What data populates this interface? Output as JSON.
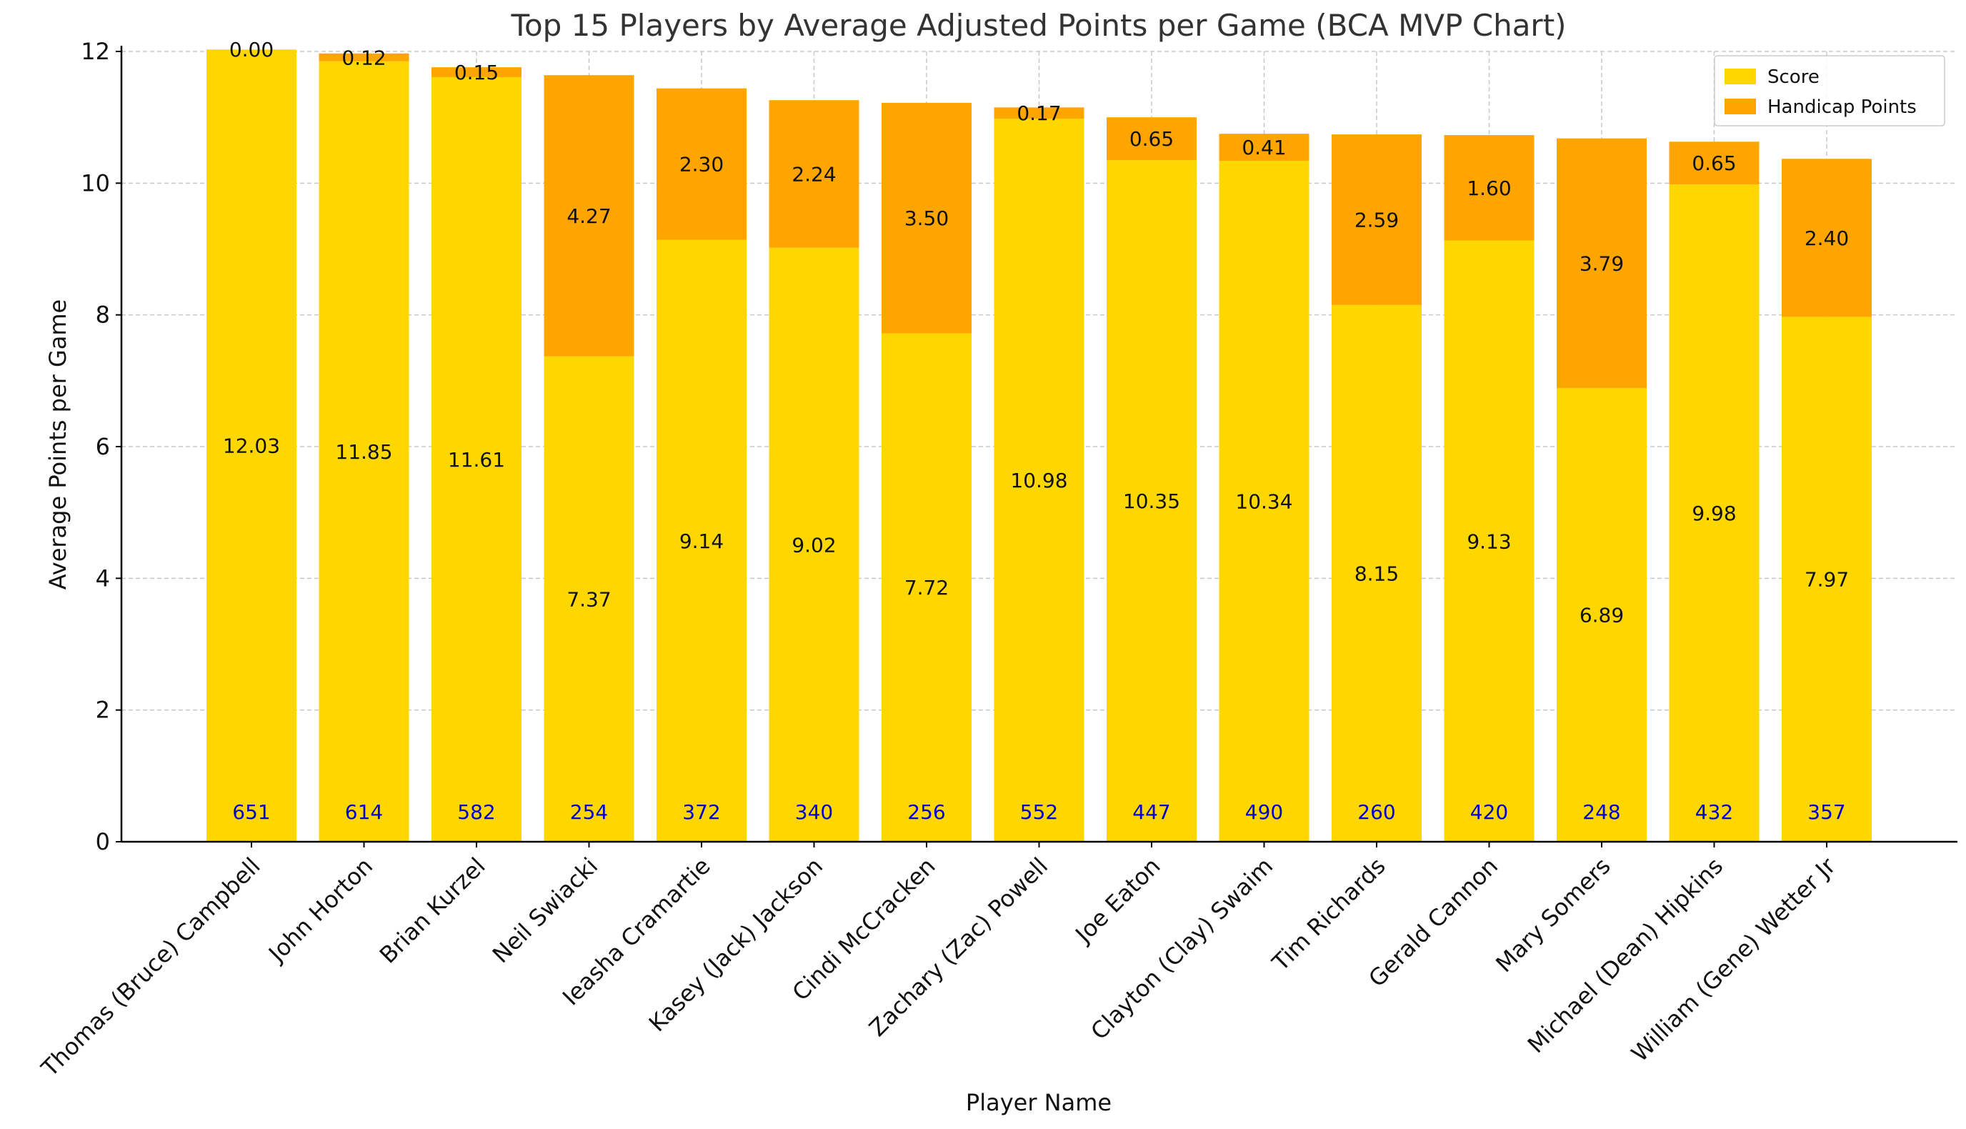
{
  "chart_data": {
    "type": "bar",
    "stacked": true,
    "title": "Top 15 Players by Average Adjusted Points per Game (BCA MVP Chart)",
    "xlabel": "Player Name",
    "ylabel": "Average Points per Game",
    "ylim": [
      0,
      12
    ],
    "yticks": [
      "0",
      "2",
      "4",
      "6",
      "8",
      "10",
      "12"
    ],
    "grid": true,
    "legend_position": "top-right",
    "categories": [
      "Thomas (Bruce) Campbell",
      "John Horton",
      "Brian Kurzel",
      "Neil Swiacki",
      "Ieasha Cramartie",
      "Kasey (Jack) Jackson",
      "Cindi McCracken",
      "Zachary (Zac) Powell",
      "Joe Eaton",
      "Clayton (Clay) Swaim",
      "Tim Richards",
      "Gerald Cannon",
      "Mary Somers",
      "Michael (Dean) Hipkins",
      "William (Gene) Wetter Jr"
    ],
    "series": [
      {
        "name": "Score",
        "color": "#FFD700",
        "values": [
          12.03,
          11.85,
          11.61,
          7.37,
          9.14,
          9.02,
          7.72,
          10.98,
          10.35,
          10.34,
          8.15,
          9.13,
          6.89,
          9.98,
          7.97
        ],
        "labels": [
          "12.03",
          "11.85",
          "11.61",
          "7.37",
          "9.14",
          "9.02",
          "7.72",
          "10.98",
          "10.35",
          "10.34",
          "8.15",
          "9.13",
          "6.89",
          "9.98",
          "7.97"
        ]
      },
      {
        "name": "Handicap Points",
        "color": "#FFA500",
        "values": [
          0.0,
          0.12,
          0.15,
          4.27,
          2.3,
          2.24,
          3.5,
          0.17,
          0.65,
          0.41,
          2.59,
          1.6,
          3.79,
          0.65,
          2.4
        ],
        "labels": [
          "0.00",
          "0.12",
          "0.15",
          "4.27",
          "2.30",
          "2.24",
          "3.50",
          "0.17",
          "0.65",
          "0.41",
          "2.59",
          "1.60",
          "3.79",
          "0.65",
          "2.40"
        ]
      }
    ],
    "bar_annotations": {
      "color": "#0000CD",
      "values": [
        "651",
        "614",
        "582",
        "254",
        "372",
        "340",
        "256",
        "552",
        "447",
        "490",
        "260",
        "420",
        "248",
        "432",
        "357"
      ]
    }
  }
}
